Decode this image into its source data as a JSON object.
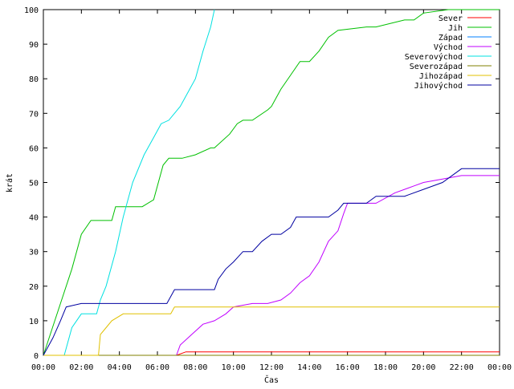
{
  "chart_data": {
    "type": "line",
    "xlabel": "Čas",
    "ylabel": "krát",
    "ylim": [
      0,
      100
    ],
    "xlim_hours": [
      0,
      24
    ],
    "x_ticks": [
      "00:00",
      "02:00",
      "04:00",
      "06:00",
      "08:00",
      "10:00",
      "12:00",
      "14:00",
      "16:00",
      "18:00",
      "20:00",
      "22:00",
      "00:00"
    ],
    "y_ticks": [
      "0",
      "10",
      "20",
      "30",
      "40",
      "50",
      "60",
      "70",
      "80",
      "90",
      "100"
    ],
    "grid": false,
    "legend_position": "top-right",
    "series": [
      {
        "name": "Sever",
        "color": "#ff0000",
        "x": [
          0,
          7.0,
          7.5,
          24
        ],
        "y": [
          0,
          0,
          1,
          1
        ]
      },
      {
        "name": "Jih",
        "color": "#00c000",
        "x": [
          0,
          0.3,
          0.6,
          0.9,
          1.5,
          2.0,
          2.5,
          3.6,
          3.8,
          5.2,
          5.8,
          6.3,
          6.6,
          7.3,
          8.0,
          8.8,
          9.0,
          9.8,
          10.2,
          10.5,
          11.0,
          11.8,
          12.0,
          12.5,
          13.0,
          13.5,
          14.0,
          14.5,
          15.0,
          15.5,
          17.0,
          17.5,
          19.0,
          19.5,
          20.0,
          21.3,
          24
        ],
        "y": [
          0,
          5,
          10,
          15,
          25,
          35,
          39,
          39,
          43,
          43,
          45,
          55,
          57,
          57,
          58,
          60,
          60,
          64,
          67,
          68,
          68,
          71,
          72,
          77,
          81,
          85,
          85,
          88,
          92,
          94,
          95,
          95,
          97,
          97,
          99,
          100,
          100
        ]
      },
      {
        "name": "Západ",
        "color": "#0080ff",
        "x": [
          0,
          24
        ],
        "y": [
          0,
          0
        ]
      },
      {
        "name": "Východ",
        "color": "#c000ff",
        "x": [
          0,
          7.0,
          7.2,
          7.8,
          8.4,
          9.0,
          9.6,
          10.0,
          11.0,
          11.8,
          12.5,
          13.0,
          13.5,
          14.0,
          14.5,
          15.0,
          15.5,
          15.8,
          16.0,
          16.5,
          17.5,
          18.5,
          19.0,
          19.5,
          20.0,
          21.0,
          22.0,
          24
        ],
        "y": [
          0,
          0,
          3,
          6,
          9,
          10,
          12,
          14,
          15,
          15,
          16,
          18,
          21,
          23,
          27,
          33,
          36,
          41,
          44,
          44,
          44,
          47,
          48,
          49,
          50,
          51,
          52,
          52
        ]
      },
      {
        "name": "Severovýchod",
        "color": "#00e0e0",
        "x": [
          0,
          1.1,
          1.5,
          2.0,
          2.8,
          3.0,
          3.3,
          3.8,
          4.2,
          4.7,
          5.3,
          5.8,
          6.2,
          6.6,
          7.2,
          7.6,
          8.0,
          8.4,
          8.8,
          9.0
        ],
        "y": [
          0,
          0,
          8,
          12,
          12,
          16,
          20,
          30,
          40,
          50,
          58,
          63,
          67,
          68,
          72,
          76,
          80,
          88,
          95,
          100
        ]
      },
      {
        "name": "Severozápad",
        "color": "#808000",
        "x": [
          0,
          24
        ],
        "y": [
          0,
          0
        ]
      },
      {
        "name": "Jihozápad",
        "color": "#e0c000",
        "x": [
          0,
          2.9,
          3.0,
          3.3,
          3.6,
          4.2,
          6.7,
          6.9,
          24
        ],
        "y": [
          0,
          0,
          6,
          8,
          10,
          12,
          12,
          14,
          14
        ]
      },
      {
        "name": "Jihovýchod",
        "color": "#0000a0",
        "x": [
          0,
          0.2,
          0.5,
          0.9,
          1.2,
          2.0,
          6.5,
          6.9,
          8.0,
          9.0,
          9.2,
          9.6,
          10.0,
          10.5,
          11.0,
          11.5,
          12.0,
          12.5,
          13.0,
          13.3,
          13.5,
          14.0,
          15.0,
          15.5,
          15.8,
          17.0,
          17.5,
          19.0,
          20.0,
          21.0,
          22.0,
          24
        ],
        "y": [
          0,
          2,
          5,
          10,
          14,
          15,
          15,
          19,
          19,
          19,
          22,
          25,
          27,
          30,
          30,
          33,
          35,
          35,
          37,
          40,
          40,
          40,
          40,
          42,
          44,
          44,
          46,
          46,
          48,
          50,
          54,
          54
        ]
      }
    ]
  }
}
